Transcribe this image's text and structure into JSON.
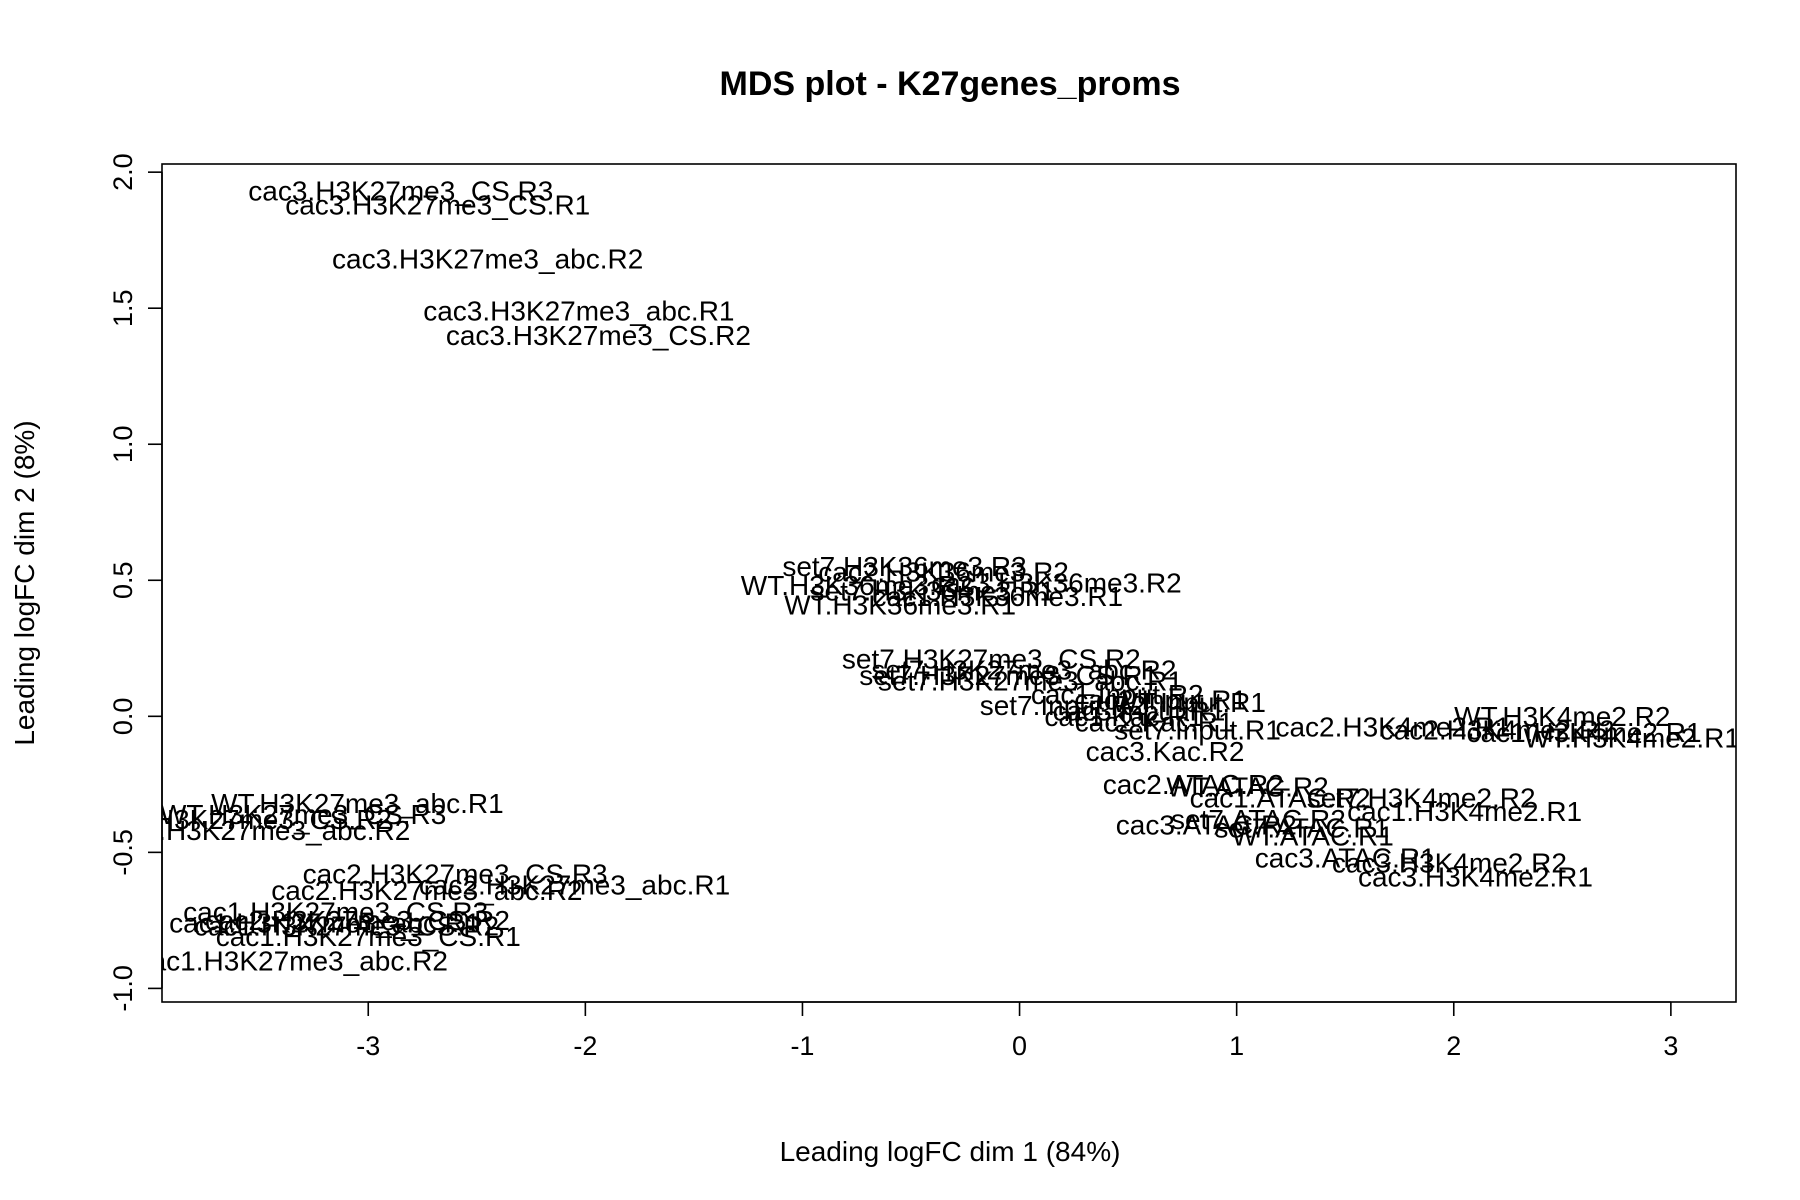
{
  "chart_data": {
    "type": "scatter",
    "title": "MDS plot - K27genes_proms",
    "xlabel": "Leading logFC dim 1 (84%)",
    "ylabel": "Leading logFC dim 2 (8%)",
    "xlim": [
      -3.95,
      3.3
    ],
    "ylim": [
      -1.05,
      2.03
    ],
    "xticks": [
      -3,
      -2,
      -1,
      0,
      1,
      2,
      3
    ],
    "yticks": [
      -1.0,
      -0.5,
      0.0,
      0.5,
      1.0,
      1.5,
      2.0
    ],
    "xtick_labels": [
      "-3",
      "-2",
      "-1",
      "0",
      "1",
      "2",
      "3"
    ],
    "ytick_labels": [
      "-1.0",
      "-0.5",
      "0.0",
      "0.5",
      "1.0",
      "1.5",
      "2.0"
    ],
    "grid": false,
    "points": [
      {
        "label": "cac3.H3K27me3_CS.R3",
        "x": -2.85,
        "y": 1.93
      },
      {
        "label": "cac3.H3K27me3_CS.R1",
        "x": -2.68,
        "y": 1.88
      },
      {
        "label": "cac3.H3K27me3_abc.R2",
        "x": -2.45,
        "y": 1.68
      },
      {
        "label": "cac3.H3K27me3_abc.R1",
        "x": -2.03,
        "y": 1.49
      },
      {
        "label": "cac3.H3K27me3_CS.R2",
        "x": -1.94,
        "y": 1.4
      },
      {
        "label": "set7.H3K36me3.R3",
        "x": -0.53,
        "y": 0.55
      },
      {
        "label": "cac2.H3K36me3.R2",
        "x": -0.35,
        "y": 0.53
      },
      {
        "label": "cac3.H3K36me3.R2",
        "x": 0.17,
        "y": 0.49
      },
      {
        "label": "WT.H3K36me3.R2",
        "x": -0.75,
        "y": 0.48
      },
      {
        "label": "set7.H3K36me3.R1",
        "x": -0.4,
        "y": 0.46
      },
      {
        "label": "cac1.H3K36me3.R1",
        "x": -0.1,
        "y": 0.44
      },
      {
        "label": "WT.H3K36me3.R1",
        "x": -0.55,
        "y": 0.41
      },
      {
        "label": "set7.H3K27me3_CS.R2",
        "x": -0.13,
        "y": 0.21
      },
      {
        "label": "set7.H3K27me3_abc.R2",
        "x": 0.02,
        "y": 0.17
      },
      {
        "label": "set7.H3K27me3_CS.R1",
        "x": -0.05,
        "y": 0.15
      },
      {
        "label": "set7.H3K27me3_abc.R1",
        "x": 0.05,
        "y": 0.13
      },
      {
        "label": "cac1.Input.R2",
        "x": 0.45,
        "y": 0.08
      },
      {
        "label": "cac2.Input.R1",
        "x": 0.65,
        "y": 0.06
      },
      {
        "label": "WT.Input.R1",
        "x": 0.78,
        "y": 0.05
      },
      {
        "label": "set7.Input.R2",
        "x": 0.2,
        "y": 0.04
      },
      {
        "label": "cac3.Input.R1",
        "x": 0.55,
        "y": 0.02
      },
      {
        "label": "cac1.Kac.R1",
        "x": 0.48,
        "y": 0.0
      },
      {
        "label": "cac2.Kac.R1",
        "x": 0.62,
        "y": -0.02
      },
      {
        "label": "set7.Input.R1",
        "x": 0.82,
        "y": -0.05
      },
      {
        "label": "cac3.Kac.R2",
        "x": 0.67,
        "y": -0.13
      },
      {
        "label": "WT.H3K4me2.R2",
        "x": 2.5,
        "y": 0.0
      },
      {
        "label": "cac2.H3K4me2.R1",
        "x": 1.72,
        "y": -0.04
      },
      {
        "label": "cac2.H3K4me2.R2",
        "x": 2.2,
        "y": -0.05
      },
      {
        "label": "cac1.H3K4me2.R1",
        "x": 2.6,
        "y": -0.06
      },
      {
        "label": "WT.H3K4me2.R1",
        "x": 2.82,
        "y": -0.08
      },
      {
        "label": "cac2.ATAC.R2",
        "x": 0.8,
        "y": -0.25
      },
      {
        "label": "WT.ATAC.R2",
        "x": 1.05,
        "y": -0.26
      },
      {
        "label": "cac1.ATAC.R2",
        "x": 1.2,
        "y": -0.3
      },
      {
        "label": "set7.H3K4me2.R2",
        "x": 1.85,
        "y": -0.3
      },
      {
        "label": "cac1.H3K4me2.R1",
        "x": 2.05,
        "y": -0.35
      },
      {
        "label": "set7.ATAC.R2",
        "x": 1.1,
        "y": -0.38
      },
      {
        "label": "cac3.ATAC.R2",
        "x": 0.86,
        "y": -0.4
      },
      {
        "label": "set7.ATAC.R1",
        "x": 1.3,
        "y": -0.41
      },
      {
        "label": "WT.ATAC.R1",
        "x": 1.35,
        "y": -0.44
      },
      {
        "label": "cac3.ATAC.R1",
        "x": 1.5,
        "y": -0.52
      },
      {
        "label": "cac3.H3K4me2.R2",
        "x": 1.98,
        "y": -0.54
      },
      {
        "label": "cac3.H3K4me2.R1",
        "x": 2.1,
        "y": -0.59
      },
      {
        "label": "WT.H3K27me3_abc.R1",
        "x": -3.05,
        "y": -0.32
      },
      {
        "label": "WT.H3K27me3_CS.R3",
        "x": -3.3,
        "y": -0.36
      },
      {
        "label": "WT.H3K27me3_CS.R2",
        "x": -3.55,
        "y": -0.38
      },
      {
        "label": "WT.H3K27me3_abc.R2",
        "x": -3.48,
        "y": -0.42
      },
      {
        "label": "cac2.H3K27me3_CS.R3",
        "x": -2.6,
        "y": -0.58
      },
      {
        "label": "cac2.H3K27me3_abc.R1",
        "x": -2.05,
        "y": -0.62
      },
      {
        "label": "cac2.H3K27me3_abc.R2",
        "x": -2.73,
        "y": -0.64
      },
      {
        "label": "cac1.H3K27me3_CS.R3",
        "x": -3.15,
        "y": -0.72
      },
      {
        "label": "cac2.H3K27me3_CS.R2",
        "x": -3.05,
        "y": -0.75
      },
      {
        "label": "cac1.H3K27me3_abc.R1",
        "x": -3.2,
        "y": -0.76
      },
      {
        "label": "cac1.H3K27me3_CS.R2",
        "x": -3.1,
        "y": -0.77
      },
      {
        "label": "cac1.H3K27me3_CS.R1",
        "x": -3.0,
        "y": -0.81
      },
      {
        "label": "cac1.H3K27me3_abc.R2",
        "x": -3.35,
        "y": -0.9
      }
    ]
  }
}
